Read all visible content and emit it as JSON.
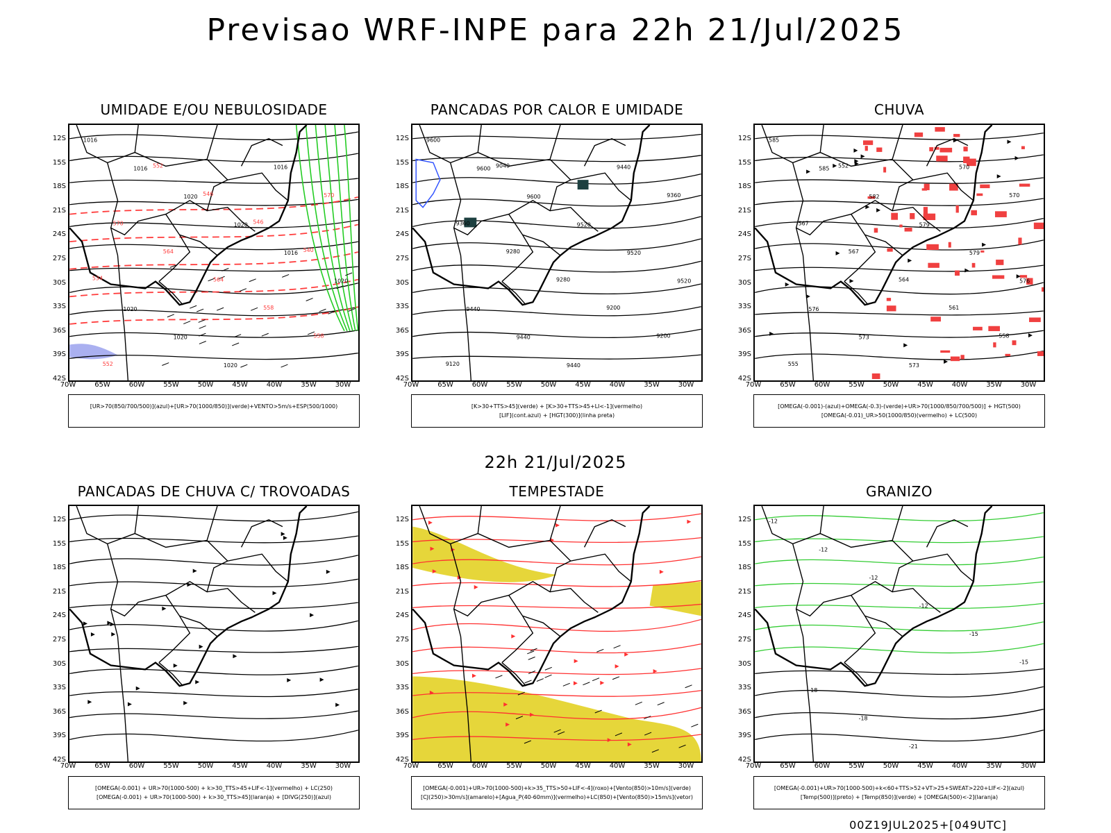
{
  "page": {
    "title": "Previsao WRF-INPE  para 22h 21/Jul/2025",
    "mid_title": "22h 21/Jul/2025",
    "footer": "00Z19JUL2025+[049UTC]"
  },
  "axes": {
    "y_labels": [
      "12S",
      "15S",
      "18S",
      "21S",
      "24S",
      "27S",
      "30S",
      "33S",
      "36S",
      "39S",
      "42S"
    ],
    "x_labels": [
      "70W",
      "65W",
      "60W",
      "55W",
      "50W",
      "45W",
      "40W",
      "35W",
      "30W"
    ]
  },
  "panels": [
    {
      "title": "UMIDADE E/OU NEBULOSIDADE",
      "legend": [
        "[UR>70(850/700/500)](azul)+[UR>70(1000/850)](verde)+VENTO>5m/s+ESP(500/1000)"
      ],
      "labels": [
        "1016",
        "1016",
        "1020",
        "1020",
        "1016",
        "1020",
        "1020",
        "1020",
        "1020",
        "1016",
        "570",
        "570",
        "564",
        "564",
        "558",
        "558",
        "552",
        "552",
        "546",
        "546",
        "540",
        "534"
      ]
    },
    {
      "title": "PANCADAS POR CALOR E UMIDADE",
      "legend": [
        "[K>30+TTS>45](verde) + [K>30+TTS>45+LI<-1](vermelho)",
        "[LIF](cont.azul) + [HGT(300)](linha preta)"
      ],
      "labels": [
        "9600",
        "9600",
        "9600",
        "9520",
        "9520",
        "9520",
        "9440",
        "9440",
        "9440",
        "9440",
        "9360",
        "9360",
        "9280",
        "9280",
        "9200",
        "9200",
        "9120",
        "9040"
      ]
    },
    {
      "title": "CHUVA",
      "legend": [
        "[OMEGA(-0.001)-(azul)+OMEGA(-0.3)-(verde)+UR>70(1000/850/700/500)] + HGT(500)",
        "[OMEGA(-0.01)_UR>50(1000/850)(vermelho) + LC(500)"
      ],
      "labels": [
        "585",
        "585",
        "582",
        "579",
        "579",
        "576",
        "576",
        "573",
        "573",
        "570",
        "570",
        "567",
        "567",
        "564",
        "561",
        "558",
        "555",
        "552"
      ]
    },
    {
      "title": "PANCADAS DE CHUVA C/ TROVOADAS",
      "legend": [
        "[OMEGA(-0.001) + UR>70(1000-500) + k>30_TTS>45+LIF<-1](vermelho) + LC(250)",
        "[OMEGA(-0.001) + UR>70(1000-500) + k>30_TTS>45](laranja) + [DIVG(250)](azul)"
      ],
      "labels": []
    },
    {
      "title": "TEMPESTADE",
      "legend": [
        "[OMEGA(-0.001)+UR>70(1000-500)+k>35_TTS>50+LIF<-4](roxo)+[Vento(850)>10m/s](verde)",
        "[CJ(250)>30m/s](amarelo)+[Agua_P(40-60mm)](vermelho)+LC(850)+[Vento(850)>15m/s](vetor)"
      ],
      "labels": []
    },
    {
      "title": "GRANIZO",
      "legend": [
        "[OMEGA(-0.001)+UR>70(1000-500)+k<60+TTS>52+VT>25+SWEAT>220+LIF<-2](azul)",
        "[Temp(500)](preto) + [Temp(850)](verde) + [OMEGA(500)<-2](laranja)"
      ],
      "labels": [
        "-12",
        "-12",
        "-12",
        "-12",
        "-15",
        "-15",
        "-18",
        "-18",
        "-21"
      ]
    }
  ]
}
